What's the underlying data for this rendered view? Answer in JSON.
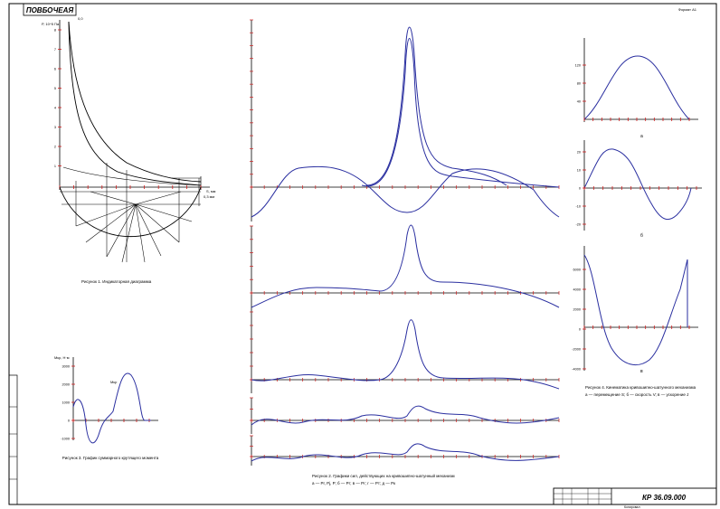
{
  "sheet": {
    "stamp_top": "ПОВБОЧЕАЯ",
    "format": "Формат А1",
    "title_block_code": "КР 36.09.000",
    "copied": "Копировал"
  },
  "colors": {
    "curve": "#2a2fa0",
    "frame": "#000000",
    "tick": "#d11a1a"
  },
  "fig1": {
    "caption": "Рисунок 1. Индикаторная диаграмма",
    "y_label": "P, 10^5 Па",
    "x_label": "S, мм",
    "point_top": "0,0",
    "y_ticks": [
      "8",
      "7",
      "6",
      "5",
      "4",
      "3",
      "2",
      "1"
    ],
    "corner_label": "0,3 мм"
  },
  "fig2": {
    "caption": "Рисунок 2. Графики сил, действующих на кривошипно-шатунный механизм",
    "caption2": "а — Рг, Рj, Р; б — Рг; в — Рг; г — Рт; д — Рк"
  },
  "fig3": {
    "caption": "Рисунок 3. График суммарного крутящего момента",
    "y_label": "Мкр, Н·м",
    "curve_label": "Мкр",
    "y_ticks": [
      "3000",
      "2000",
      "1000",
      "0",
      "-1000"
    ]
  },
  "fig4": {
    "caption": "Рисунок 4. Кинематика кривошипно-шатунного механизма",
    "caption2": "а — перемещение S; б — скорость V; в — ускорение J",
    "a_y_ticks": [
      "120",
      "80",
      "40"
    ],
    "b_y_ticks": [
      "20",
      "10",
      "0",
      "-10",
      "-20"
    ],
    "c_y_ticks": [
      "6000",
      "4000",
      "2000",
      "0",
      "-2000",
      "-4000"
    ],
    "sub_a": "а",
    "sub_b": "б",
    "sub_c": "в"
  }
}
